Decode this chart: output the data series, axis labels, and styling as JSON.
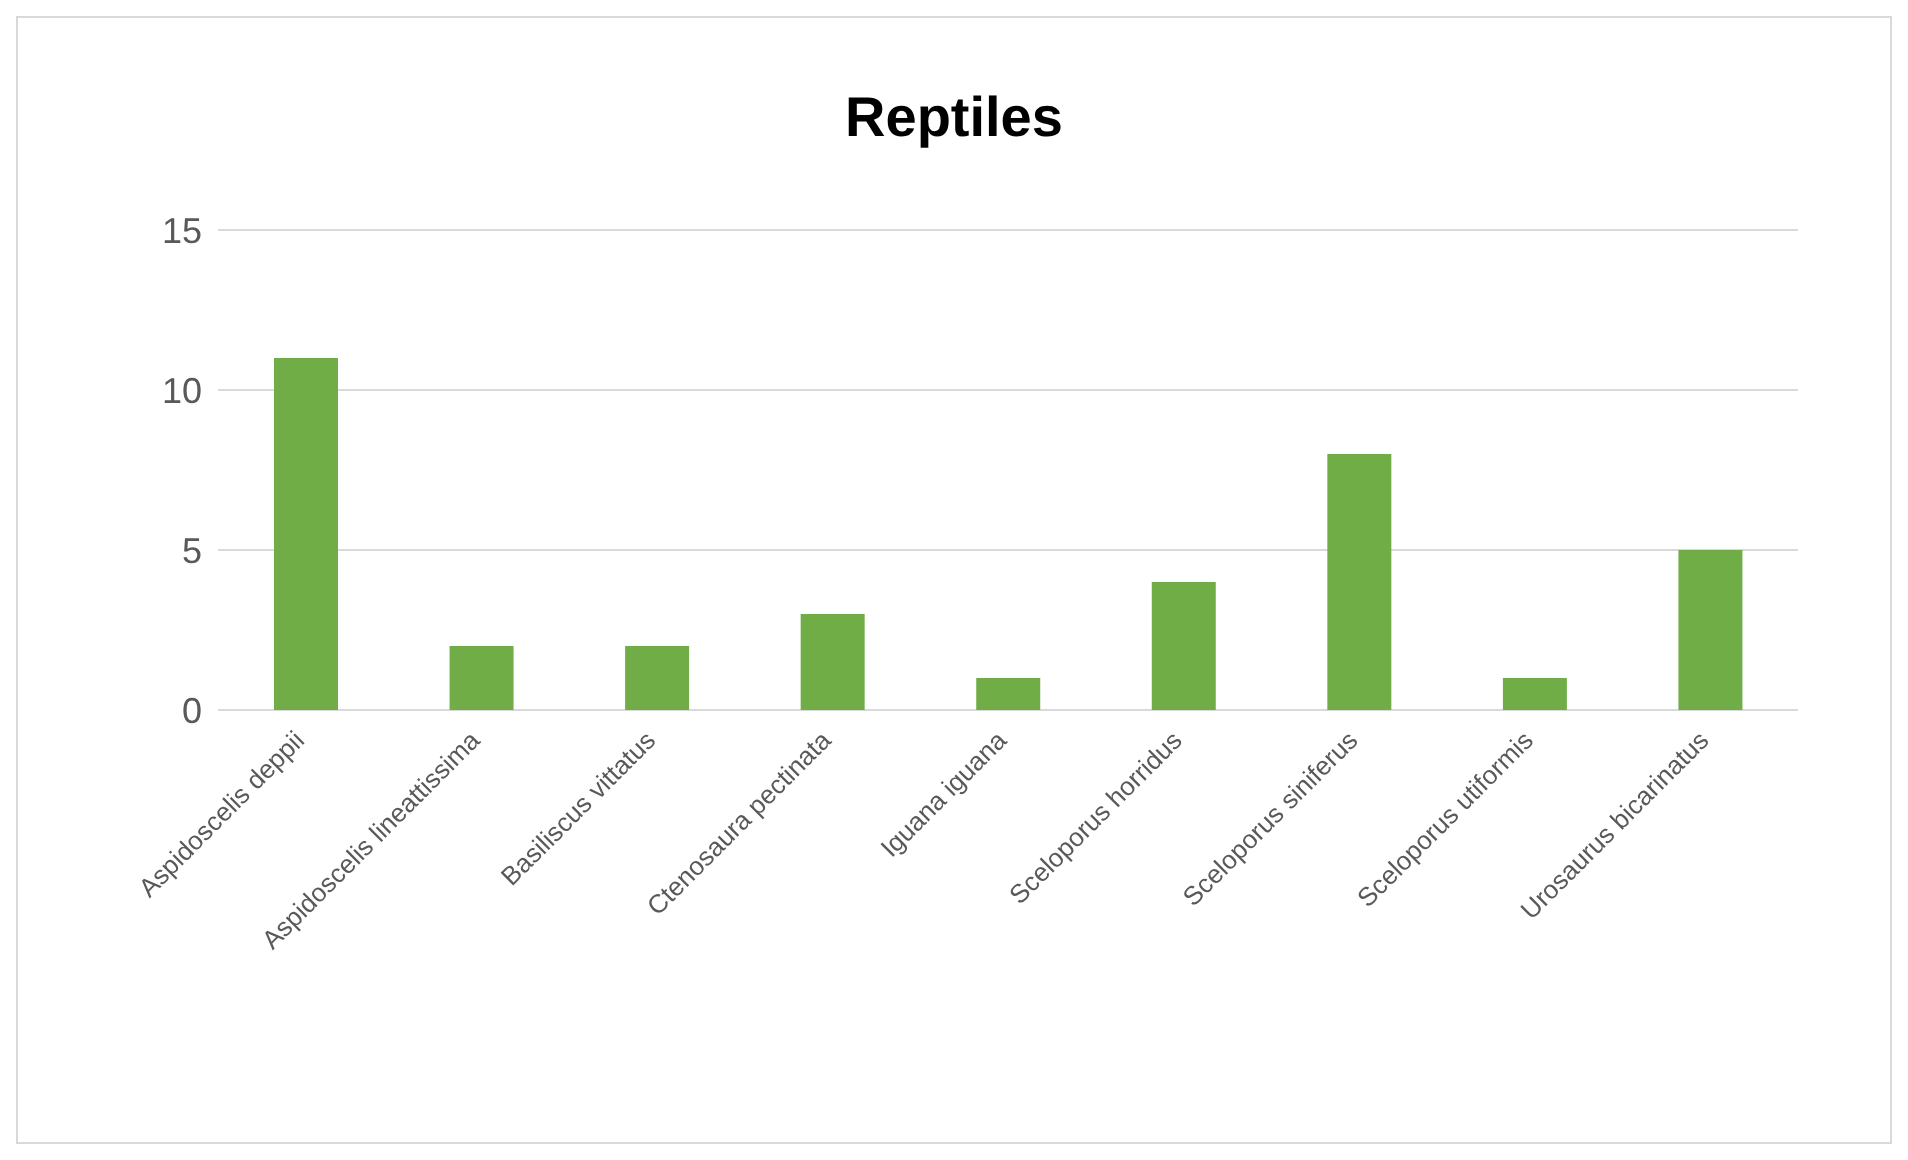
{
  "chart_data": {
    "type": "bar",
    "title": "Reptiles",
    "categories": [
      "Aspidoscelis deppii",
      "Aspidoscelis lineattissima",
      "Basiliscus vittatus",
      "Ctenosaura pectinata",
      "Iguana iguana",
      "Sceloporus horridus",
      "Sceloporus siniferus",
      "Sceloporus utiformis",
      "Urosaurus bicarinatus"
    ],
    "values": [
      11,
      2,
      2,
      3,
      1,
      4,
      8,
      1,
      5
    ],
    "color": "#70ad47",
    "ylim": [
      0,
      15
    ],
    "yticks": [
      0,
      5,
      10,
      15
    ],
    "grid": "y"
  }
}
